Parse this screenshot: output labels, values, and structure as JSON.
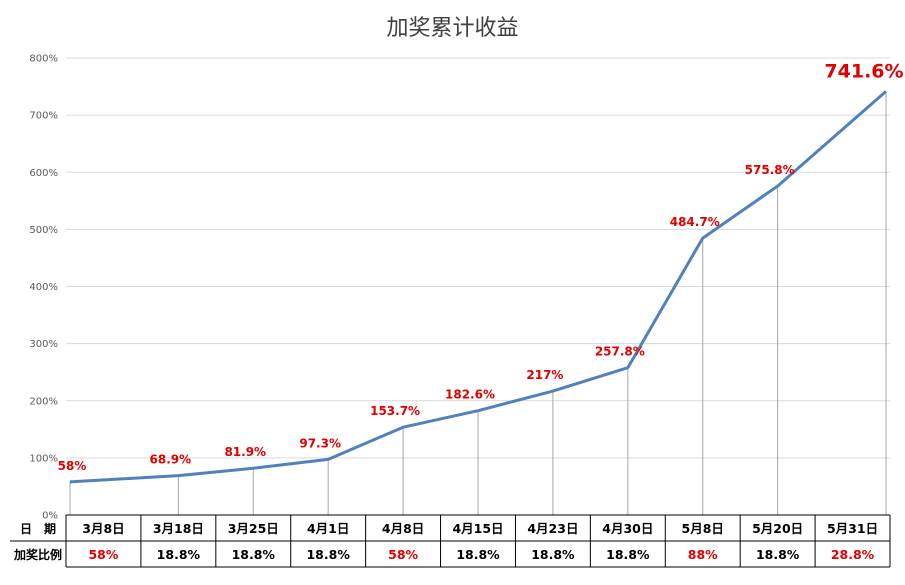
{
  "chart_data": {
    "type": "line",
    "title": "加奖累计收益",
    "xlabel": "",
    "ylabel": "",
    "ylim": [
      0,
      800
    ],
    "yticks": [
      "0%",
      "100%",
      "200%",
      "300%",
      "400%",
      "500%",
      "600%",
      "700%",
      "800%"
    ],
    "grid": true,
    "categories": [
      "3月8日",
      "3月18日",
      "3月25日",
      "4月1日",
      "4月8日",
      "4月15日",
      "4月23日",
      "4月30日",
      "5月8日",
      "5月20日",
      "5月31日"
    ],
    "values": [
      58,
      68.9,
      81.9,
      97.3,
      153.7,
      182.6,
      217,
      257.8,
      484.7,
      575.8,
      741.6
    ],
    "point_labels": [
      "58%",
      "68.9%",
      "81.9%",
      "97.3%",
      "153.7%",
      "182.6%",
      "217%",
      "257.8%",
      "484.7%",
      "575.8%",
      "741.6%"
    ],
    "line_color": "#4f81bd",
    "label_color": "#e00000",
    "table": {
      "row1_header": "日　期",
      "row2_header": "加奖比例",
      "bonus_ratios": [
        "58%",
        "18.8%",
        "18.8%",
        "18.8%",
        "58%",
        "18.8%",
        "18.8%",
        "18.8%",
        "88%",
        "18.8%",
        "28.8%"
      ],
      "highlighted": [
        true,
        false,
        false,
        false,
        true,
        false,
        false,
        false,
        true,
        false,
        true
      ]
    }
  }
}
